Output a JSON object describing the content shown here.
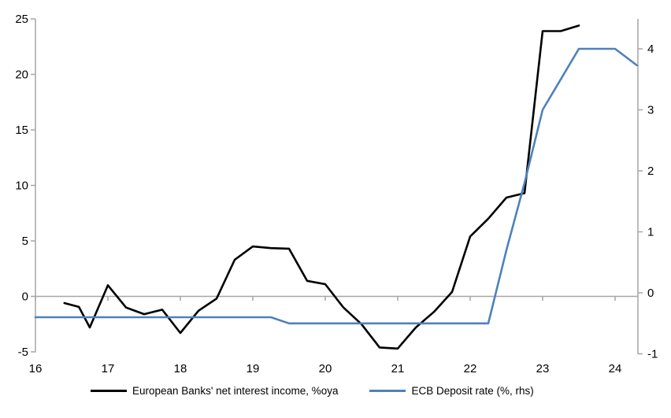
{
  "page": {
    "background": "#ffffff"
  },
  "chart_data": {
    "type": "line",
    "title": "",
    "grid": false,
    "zero_line": true,
    "legend_position": "bottom",
    "axis_color": "#a6a6a6",
    "x_axis": {
      "tick_labels": [
        "16",
        "17",
        "18",
        "19",
        "20",
        "21",
        "22",
        "23",
        "24"
      ],
      "min": 16,
      "max": 24.35
    },
    "y_axis_left": {
      "tick_labels": [
        "25",
        "20",
        "15",
        "10",
        "5",
        "0",
        "-5"
      ],
      "min": -5,
      "max": 25
    },
    "y_axis_right": {
      "tick_labels": [
        "4",
        "3",
        "2",
        "1",
        "0",
        "-1"
      ],
      "min": -1,
      "max": 4.55
    },
    "series": [
      {
        "name": "European Banks' net interest income, %oya",
        "axis": "left",
        "color": "#000000",
        "points": [
          [
            16.4,
            -0.6
          ],
          [
            16.6,
            -0.95
          ],
          [
            16.75,
            -2.8
          ],
          [
            17.0,
            1.0
          ],
          [
            17.25,
            -1.0
          ],
          [
            17.5,
            -1.6
          ],
          [
            17.75,
            -1.2
          ],
          [
            18.0,
            -3.3
          ],
          [
            18.25,
            -1.3
          ],
          [
            18.5,
            -0.2
          ],
          [
            18.75,
            3.3
          ],
          [
            19.0,
            4.5
          ],
          [
            19.25,
            4.35
          ],
          [
            19.5,
            4.3
          ],
          [
            19.75,
            1.4
          ],
          [
            20.0,
            1.1
          ],
          [
            20.25,
            -1.0
          ],
          [
            20.5,
            -2.5
          ],
          [
            20.75,
            -4.6
          ],
          [
            21.0,
            -4.7
          ],
          [
            21.25,
            -2.8
          ],
          [
            21.5,
            -1.4
          ],
          [
            21.75,
            0.4
          ],
          [
            22.0,
            5.4
          ],
          [
            22.25,
            7.0
          ],
          [
            22.5,
            8.9
          ],
          [
            22.75,
            9.3
          ],
          [
            23.0,
            23.9
          ],
          [
            23.25,
            23.9
          ],
          [
            23.5,
            24.4
          ]
        ]
      },
      {
        "name": "ECB Deposit rate (%, rhs)",
        "axis": "right",
        "color": "#4E81BD",
        "points": [
          [
            16.0,
            -0.4
          ],
          [
            16.25,
            -0.4
          ],
          [
            16.5,
            -0.4
          ],
          [
            16.75,
            -0.4
          ],
          [
            17.0,
            -0.4
          ],
          [
            17.25,
            -0.4
          ],
          [
            17.5,
            -0.4
          ],
          [
            17.75,
            -0.4
          ],
          [
            18.0,
            -0.4
          ],
          [
            18.25,
            -0.4
          ],
          [
            18.5,
            -0.4
          ],
          [
            18.75,
            -0.4
          ],
          [
            19.0,
            -0.4
          ],
          [
            19.25,
            -0.4
          ],
          [
            19.5,
            -0.5
          ],
          [
            19.75,
            -0.5
          ],
          [
            20.0,
            -0.5
          ],
          [
            20.25,
            -0.5
          ],
          [
            20.5,
            -0.5
          ],
          [
            20.75,
            -0.5
          ],
          [
            21.0,
            -0.5
          ],
          [
            21.25,
            -0.5
          ],
          [
            21.5,
            -0.5
          ],
          [
            21.75,
            -0.5
          ],
          [
            22.0,
            -0.5
          ],
          [
            22.25,
            -0.5
          ],
          [
            22.5,
            0.7
          ],
          [
            22.75,
            1.8
          ],
          [
            23.0,
            3.0
          ],
          [
            23.25,
            3.5
          ],
          [
            23.5,
            4.0
          ],
          [
            23.75,
            4.0
          ],
          [
            24.0,
            4.0
          ],
          [
            24.3,
            3.73
          ]
        ]
      }
    ]
  }
}
